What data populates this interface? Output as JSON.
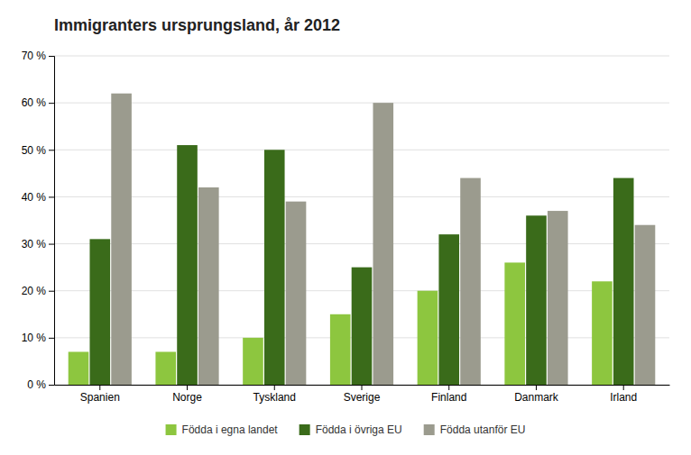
{
  "chart_data": {
    "type": "bar",
    "title": "Immigranters ursprungsland, år 2012",
    "categories": [
      "Spanien",
      "Norge",
      "Tyskland",
      "Sverige",
      "Finland",
      "Danmark",
      "Irland"
    ],
    "series": [
      {
        "name": "Födda i egna landet",
        "color": "#8dc63f",
        "values": [
          7,
          7,
          10,
          15,
          20,
          26,
          22
        ]
      },
      {
        "name": "Födda i övriga EU",
        "color": "#3a6b1a",
        "values": [
          31,
          51,
          50,
          25,
          32,
          36,
          44
        ]
      },
      {
        "name": "Födda utanför EU",
        "color": "#9b9b8e",
        "values": [
          62,
          42,
          39,
          60,
          44,
          37,
          34
        ]
      }
    ],
    "ylim": [
      0,
      70
    ],
    "yticks": [
      {
        "value": 0,
        "label": "0 %"
      },
      {
        "value": 10,
        "label": "10 %"
      },
      {
        "value": 20,
        "label": "20 %"
      },
      {
        "value": 30,
        "label": "30 %"
      },
      {
        "value": 40,
        "label": "40 %"
      },
      {
        "value": 50,
        "label": "50 %"
      },
      {
        "value": 60,
        "label": "60 %"
      },
      {
        "value": 70,
        "label": "70 %"
      }
    ],
    "grid": true,
    "legend": "bottom"
  }
}
